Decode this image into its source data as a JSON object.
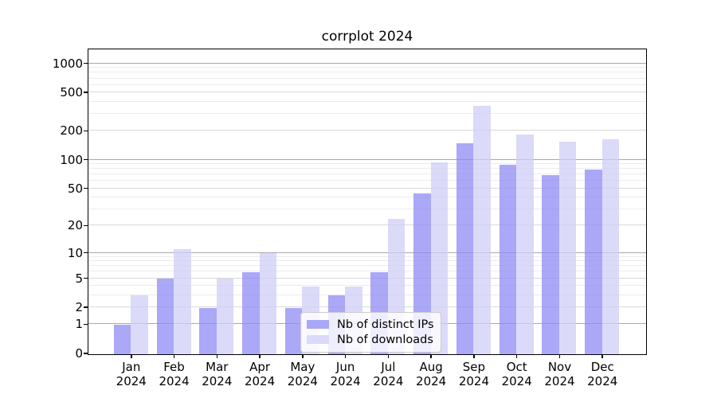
{
  "chart_data": {
    "type": "bar",
    "title": "corrplot 2024",
    "categories": [
      "Jan 2024",
      "Feb 2024",
      "Mar 2024",
      "Apr 2024",
      "May 2024",
      "Jun 2024",
      "Jul 2024",
      "Aug 2024",
      "Sep 2024",
      "Oct 2024",
      "Nov 2024",
      "Dec 2024"
    ],
    "series": [
      {
        "name": "Nb of distinct IPs",
        "values": [
          1,
          5,
          2,
          6,
          2,
          3,
          6,
          45,
          150,
          90,
          70,
          80
        ],
        "color": "rgba(142,139,244,0.75)",
        "color_solid": "#a9a8f6"
      },
      {
        "name": "Nb of downloads",
        "values": [
          3,
          11,
          5,
          10,
          4,
          4,
          24,
          95,
          365,
          185,
          155,
          165
        ],
        "color": "rgba(207,206,247,0.75)",
        "color_solid": "#dbdaf9"
      }
    ],
    "yscale": "log1p",
    "ylim": [
      0,
      1400
    ],
    "yticks": [
      0,
      1,
      2,
      5,
      10,
      20,
      50,
      100,
      200,
      500,
      1000
    ],
    "grid": "both",
    "legend_position": "lower center",
    "xlabel": "",
    "ylabel": ""
  },
  "colors": {
    "grid_major": "#a8a8a8",
    "grid_mid": "#d9d9d9",
    "grid_minor": "#ececec",
    "axis": "#000000",
    "text": "#000000",
    "legend_border": "#cccccc",
    "legend_bg": "rgba(255,255,255,0.8)"
  }
}
